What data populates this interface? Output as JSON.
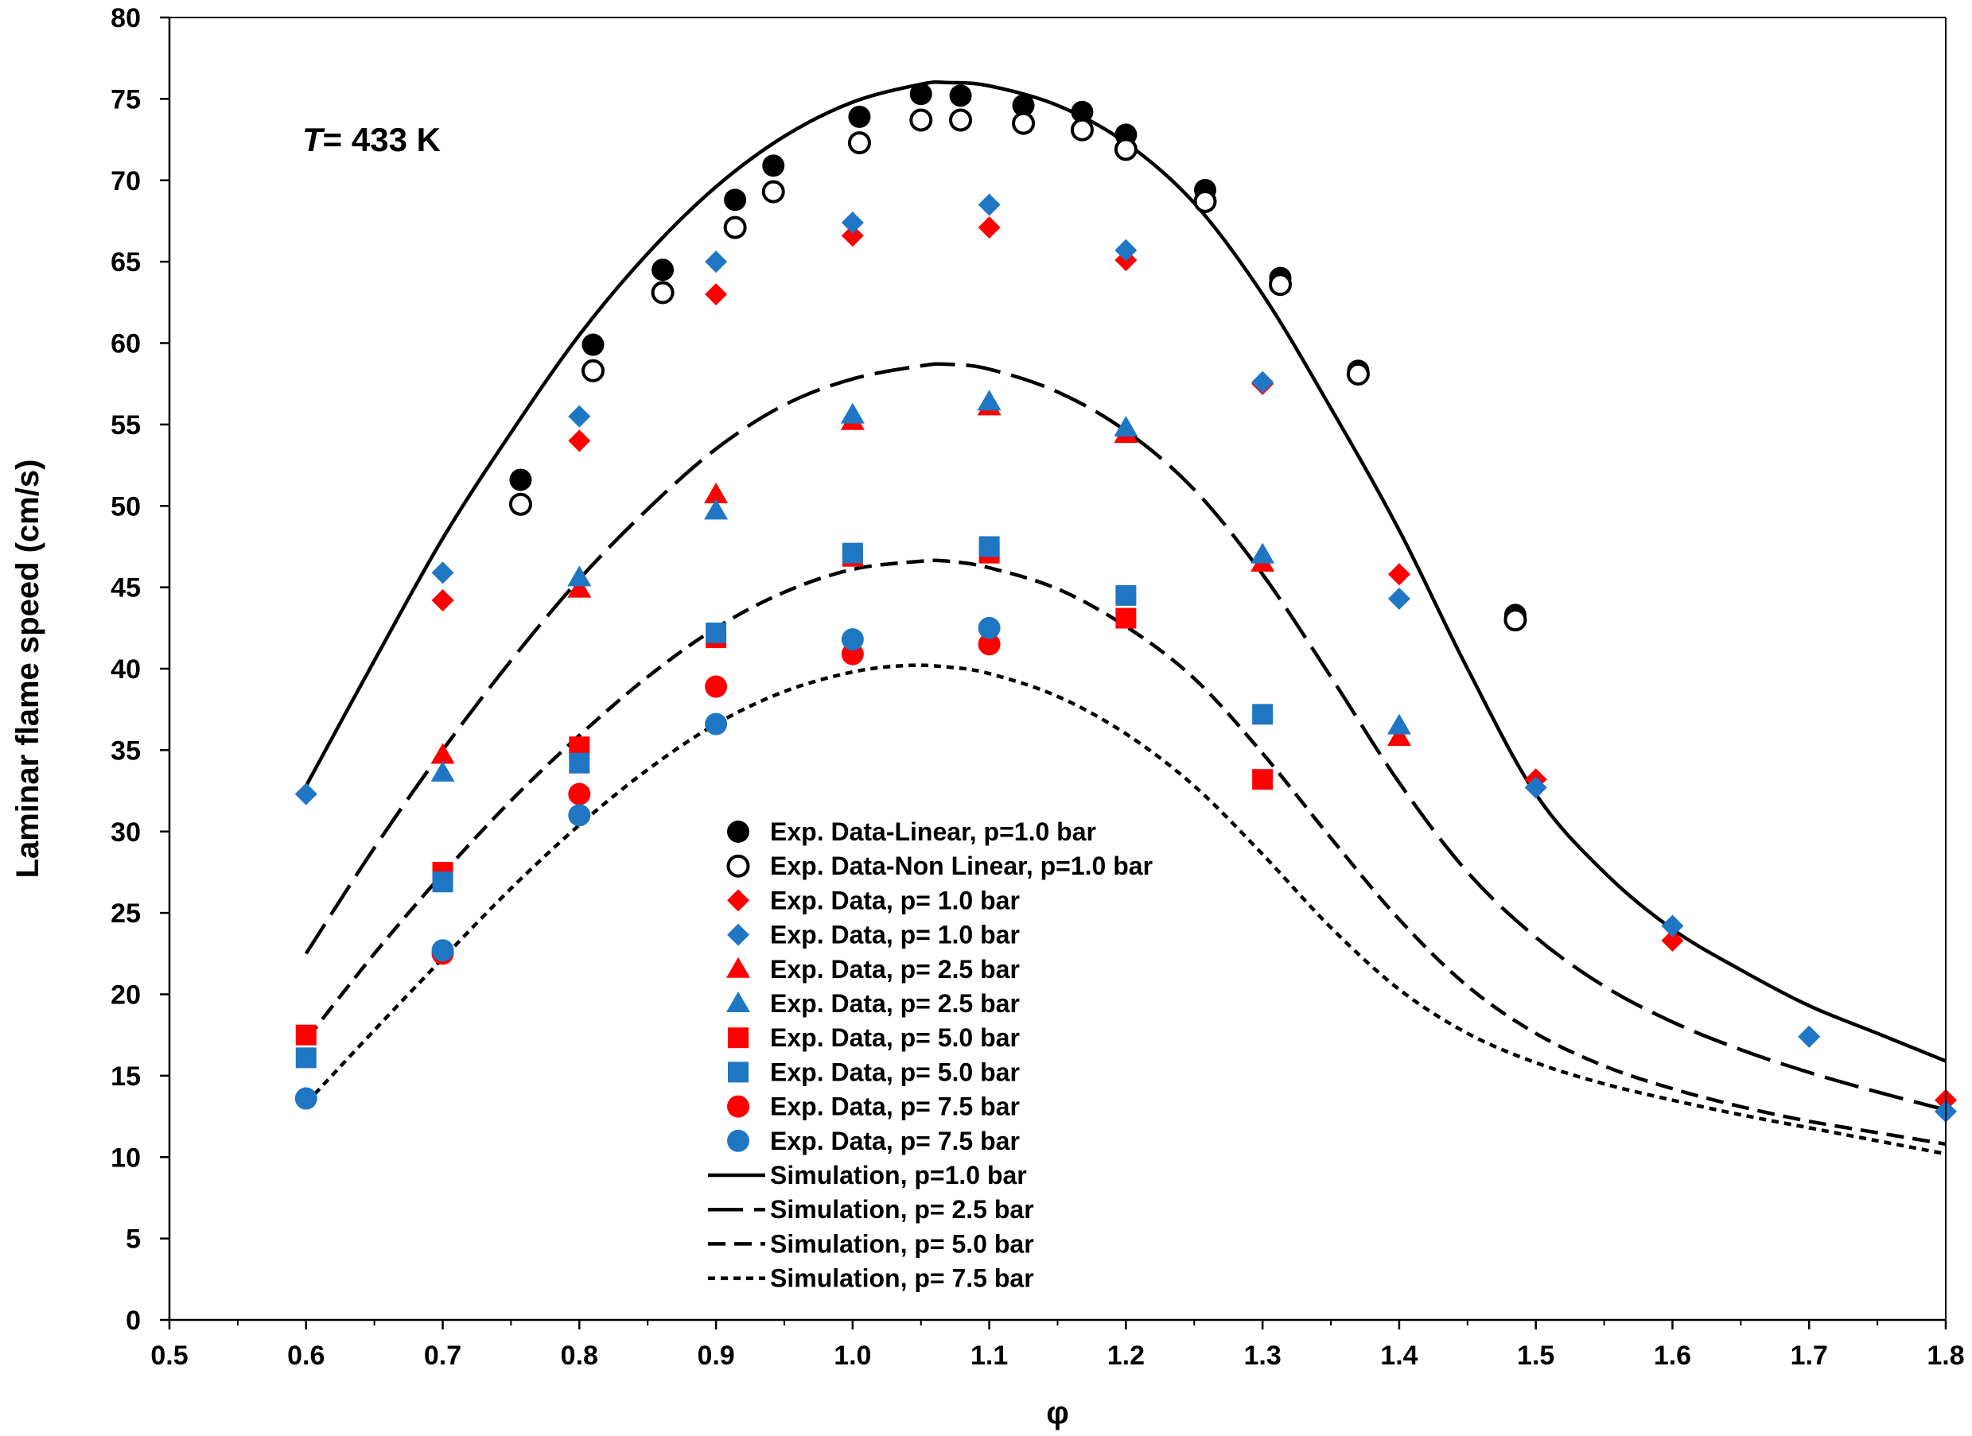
{
  "chart_data": {
    "type": "scatter",
    "title": "",
    "xlabel": "φ",
    "ylabel": "Laminar flame speed (cm/s)",
    "annotation": {
      "italic": "T",
      "rest": "= 433 K"
    },
    "xlim": [
      0.5,
      1.8
    ],
    "ylim": [
      0,
      80
    ],
    "x_ticks": [
      "0.5",
      "0.6",
      "0.7",
      "0.8",
      "0.9",
      "1.0",
      "1.1",
      "1.2",
      "1.3",
      "1.4",
      "1.5",
      "1.6",
      "1.7",
      "1.8"
    ],
    "x_tick_values": [
      0.5,
      0.6,
      0.7,
      0.8,
      0.9,
      1.0,
      1.1,
      1.2,
      1.3,
      1.4,
      1.5,
      1.6,
      1.7,
      1.8
    ],
    "y_ticks": [
      "0",
      "5",
      "10",
      "15",
      "20",
      "25",
      "30",
      "35",
      "40",
      "45",
      "50",
      "55",
      "60",
      "65",
      "70",
      "75",
      "80"
    ],
    "y_tick_values": [
      0,
      5,
      10,
      15,
      20,
      25,
      30,
      35,
      40,
      45,
      50,
      55,
      60,
      65,
      70,
      75,
      80
    ],
    "grid": false,
    "legend_position": "center-bottom",
    "series": [
      {
        "name": "Exp. Data-Linear, p=1.0 bar",
        "marker": "circle-filled",
        "color": "#000000",
        "points": [
          [
            0.757,
            51.6
          ],
          [
            0.81,
            59.9
          ],
          [
            0.861,
            64.5
          ],
          [
            0.914,
            68.8
          ],
          [
            0.942,
            70.9
          ],
          [
            1.005,
            73.9
          ],
          [
            1.05,
            75.3
          ],
          [
            1.079,
            75.2
          ],
          [
            1.125,
            74.6
          ],
          [
            1.168,
            74.2
          ],
          [
            1.2,
            72.8
          ],
          [
            1.258,
            69.4
          ],
          [
            1.313,
            64.0
          ],
          [
            1.37,
            58.3
          ],
          [
            1.485,
            43.3
          ]
        ]
      },
      {
        "name": "Exp. Data-Non Linear, p=1.0 bar",
        "marker": "circle-open",
        "color": "#000000",
        "points": [
          [
            0.757,
            50.1
          ],
          [
            0.81,
            58.3
          ],
          [
            0.861,
            63.1
          ],
          [
            0.914,
            67.1
          ],
          [
            0.942,
            69.3
          ],
          [
            1.005,
            72.3
          ],
          [
            1.05,
            73.7
          ],
          [
            1.079,
            73.7
          ],
          [
            1.125,
            73.5
          ],
          [
            1.168,
            73.1
          ],
          [
            1.2,
            71.9
          ],
          [
            1.258,
            68.7
          ],
          [
            1.313,
            63.6
          ],
          [
            1.37,
            58.1
          ],
          [
            1.485,
            43.0
          ]
        ]
      },
      {
        "name": "Exp. Data, p= 1.0 bar",
        "marker": "diamond",
        "color": "#ff0000",
        "points": [
          [
            0.7,
            44.2
          ],
          [
            0.8,
            54.0
          ],
          [
            0.9,
            63.0
          ],
          [
            1.0,
            66.6
          ],
          [
            1.1,
            67.1
          ],
          [
            1.2,
            65.1
          ],
          [
            1.3,
            57.5
          ],
          [
            1.4,
            45.8
          ],
          [
            1.5,
            33.2
          ],
          [
            1.6,
            23.3
          ],
          [
            1.8,
            13.5
          ]
        ]
      },
      {
        "name": "Exp. Data, p= 1.0 bar",
        "marker": "diamond",
        "color": "#1f77c4",
        "points": [
          [
            0.6,
            32.3
          ],
          [
            0.7,
            45.9
          ],
          [
            0.8,
            55.5
          ],
          [
            0.9,
            65.0
          ],
          [
            1.0,
            67.4
          ],
          [
            1.1,
            68.5
          ],
          [
            1.2,
            65.7
          ],
          [
            1.3,
            57.6
          ],
          [
            1.4,
            44.3
          ],
          [
            1.5,
            32.7
          ],
          [
            1.6,
            24.2
          ],
          [
            1.7,
            17.4
          ],
          [
            1.8,
            12.8
          ]
        ]
      },
      {
        "name": "Exp. Data, p= 2.5 bar",
        "marker": "triangle",
        "color": "#ff0000",
        "points": [
          [
            0.7,
            34.7
          ],
          [
            0.8,
            44.9
          ],
          [
            0.9,
            50.7
          ],
          [
            1.0,
            55.2
          ],
          [
            1.1,
            56.1
          ],
          [
            1.2,
            54.4
          ],
          [
            1.3,
            46.5
          ],
          [
            1.4,
            35.8
          ]
        ]
      },
      {
        "name": "Exp. Data, p= 2.5 bar",
        "marker": "triangle",
        "color": "#1f77c4",
        "points": [
          [
            0.7,
            33.6
          ],
          [
            0.8,
            45.6
          ],
          [
            0.9,
            49.7
          ],
          [
            1.0,
            55.6
          ],
          [
            1.1,
            56.4
          ],
          [
            1.2,
            54.8
          ],
          [
            1.3,
            47.0
          ],
          [
            1.4,
            36.5
          ]
        ]
      },
      {
        "name": "Exp. Data, p= 5.0 bar",
        "marker": "square",
        "color": "#ff0000",
        "points": [
          [
            0.6,
            17.5
          ],
          [
            0.7,
            27.5
          ],
          [
            0.8,
            35.2
          ],
          [
            0.9,
            41.9
          ],
          [
            1.0,
            46.9
          ],
          [
            1.1,
            47.1
          ],
          [
            1.2,
            43.1
          ],
          [
            1.3,
            33.2
          ]
        ]
      },
      {
        "name": "Exp. Data, p= 5.0 bar",
        "marker": "square",
        "color": "#1f77c4",
        "points": [
          [
            0.6,
            16.1
          ],
          [
            0.7,
            26.9
          ],
          [
            0.8,
            34.2
          ],
          [
            0.9,
            42.2
          ],
          [
            1.0,
            47.1
          ],
          [
            1.1,
            47.5
          ],
          [
            1.2,
            44.5
          ],
          [
            1.3,
            37.2
          ]
        ]
      },
      {
        "name": "Exp. Data, p= 7.5 bar",
        "marker": "circle-filled",
        "color": "#ff0000",
        "points": [
          [
            0.7,
            22.5
          ],
          [
            0.8,
            32.3
          ],
          [
            0.9,
            38.9
          ],
          [
            1.0,
            40.9
          ],
          [
            1.1,
            41.5
          ]
        ]
      },
      {
        "name": "Exp. Data, p= 7.5 bar",
        "marker": "circle-filled",
        "color": "#1f77c4",
        "points": [
          [
            0.6,
            13.6
          ],
          [
            0.7,
            22.7
          ],
          [
            0.8,
            31.0
          ],
          [
            0.9,
            36.6
          ],
          [
            1.0,
            41.8
          ],
          [
            1.1,
            42.5
          ]
        ]
      },
      {
        "name": "Simulation, p=1.0 bar",
        "marker": "line-solid",
        "color": "#000000",
        "points": [
          [
            0.6,
            32.8
          ],
          [
            0.65,
            40.5
          ],
          [
            0.7,
            48.0
          ],
          [
            0.75,
            54.5
          ],
          [
            0.8,
            60.5
          ],
          [
            0.85,
            65.5
          ],
          [
            0.9,
            69.6
          ],
          [
            0.95,
            72.7
          ],
          [
            1.0,
            74.8
          ],
          [
            1.05,
            75.9
          ],
          [
            1.07,
            76.0
          ],
          [
            1.1,
            75.8
          ],
          [
            1.15,
            74.6
          ],
          [
            1.2,
            72.3
          ],
          [
            1.25,
            68.6
          ],
          [
            1.3,
            63.0
          ],
          [
            1.35,
            56.0
          ],
          [
            1.4,
            48.5
          ],
          [
            1.45,
            40.0
          ],
          [
            1.5,
            32.3
          ],
          [
            1.55,
            27.5
          ],
          [
            1.6,
            24.0
          ],
          [
            1.65,
            21.5
          ],
          [
            1.7,
            19.3
          ],
          [
            1.75,
            17.6
          ],
          [
            1.8,
            15.9
          ]
        ]
      },
      {
        "name": "Simulation, p= 2.5 bar",
        "marker": "line-longdash",
        "color": "#000000",
        "points": [
          [
            0.6,
            22.5
          ],
          [
            0.65,
            29.0
          ],
          [
            0.7,
            35.0
          ],
          [
            0.75,
            40.5
          ],
          [
            0.8,
            45.5
          ],
          [
            0.85,
            49.8
          ],
          [
            0.9,
            53.5
          ],
          [
            0.95,
            56.2
          ],
          [
            1.0,
            57.8
          ],
          [
            1.05,
            58.6
          ],
          [
            1.07,
            58.7
          ],
          [
            1.1,
            58.4
          ],
          [
            1.15,
            57.0
          ],
          [
            1.2,
            54.6
          ],
          [
            1.25,
            51.0
          ],
          [
            1.3,
            45.8
          ],
          [
            1.35,
            39.5
          ],
          [
            1.4,
            33.0
          ],
          [
            1.45,
            27.5
          ],
          [
            1.5,
            23.5
          ],
          [
            1.55,
            20.5
          ],
          [
            1.6,
            18.3
          ],
          [
            1.65,
            16.6
          ],
          [
            1.7,
            15.2
          ],
          [
            1.75,
            14.0
          ],
          [
            1.8,
            12.9
          ]
        ]
      },
      {
        "name": "Simulation, p= 5.0 bar",
        "marker": "line-dash",
        "color": "#000000",
        "points": [
          [
            0.6,
            17.2
          ],
          [
            0.65,
            22.5
          ],
          [
            0.7,
            27.4
          ],
          [
            0.75,
            31.9
          ],
          [
            0.8,
            35.9
          ],
          [
            0.85,
            39.5
          ],
          [
            0.9,
            42.5
          ],
          [
            0.95,
            44.7
          ],
          [
            1.0,
            46.1
          ],
          [
            1.05,
            46.6
          ],
          [
            1.07,
            46.6
          ],
          [
            1.1,
            46.2
          ],
          [
            1.15,
            44.9
          ],
          [
            1.2,
            42.6
          ],
          [
            1.25,
            39.4
          ],
          [
            1.3,
            34.8
          ],
          [
            1.35,
            29.6
          ],
          [
            1.4,
            24.6
          ],
          [
            1.45,
            20.5
          ],
          [
            1.5,
            17.6
          ],
          [
            1.55,
            15.6
          ],
          [
            1.6,
            14.2
          ],
          [
            1.65,
            13.1
          ],
          [
            1.7,
            12.2
          ],
          [
            1.75,
            11.5
          ],
          [
            1.8,
            10.8
          ]
        ]
      },
      {
        "name": "Simulation, p= 7.5 bar",
        "marker": "line-dot",
        "color": "#000000",
        "points": [
          [
            0.6,
            13.3
          ],
          [
            0.65,
            17.8
          ],
          [
            0.7,
            22.2
          ],
          [
            0.75,
            26.5
          ],
          [
            0.8,
            30.4
          ],
          [
            0.85,
            33.8
          ],
          [
            0.9,
            36.6
          ],
          [
            0.95,
            38.6
          ],
          [
            1.0,
            39.8
          ],
          [
            1.04,
            40.2
          ],
          [
            1.07,
            40.1
          ],
          [
            1.1,
            39.7
          ],
          [
            1.15,
            38.3
          ],
          [
            1.2,
            36.0
          ],
          [
            1.25,
            32.8
          ],
          [
            1.3,
            28.6
          ],
          [
            1.35,
            24.1
          ],
          [
            1.4,
            20.3
          ],
          [
            1.45,
            17.6
          ],
          [
            1.5,
            15.8
          ],
          [
            1.55,
            14.5
          ],
          [
            1.6,
            13.5
          ],
          [
            1.65,
            12.6
          ],
          [
            1.7,
            11.8
          ],
          [
            1.75,
            11.0
          ],
          [
            1.8,
            10.2
          ]
        ]
      }
    ]
  }
}
